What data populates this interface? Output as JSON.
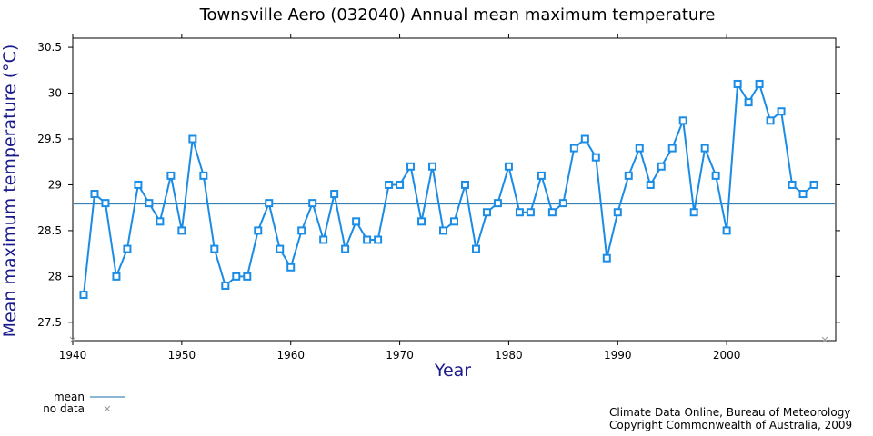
{
  "chart_data": {
    "type": "line",
    "title": "Townsville Aero (032040) Annual mean maximum temperature",
    "xlabel": "Year",
    "ylabel": "Mean maximum temperature (°C)",
    "xlim": [
      1940,
      2010
    ],
    "ylim": [
      27.3,
      30.6
    ],
    "xticks": [
      1940,
      1950,
      1960,
      1970,
      1980,
      1990,
      2000
    ],
    "yticks": [
      27.5,
      28,
      28.5,
      29,
      29.5,
      30,
      30.5
    ],
    "xtick_labels": [
      "1940",
      "1950",
      "1960",
      "1970",
      "1980",
      "1990",
      "2000"
    ],
    "ytick_labels": [
      "27.5",
      "28",
      "28.5",
      "29",
      "29.5",
      "30",
      "30.5"
    ],
    "grid": false,
    "mean": 28.79,
    "series": [
      {
        "x": [
          1941,
          1942,
          1943,
          1944,
          1945,
          1946,
          1947,
          1948,
          1949,
          1950,
          1951,
          1952,
          1953,
          1954,
          1955,
          1956,
          1957,
          1958,
          1959,
          1960,
          1961,
          1962,
          1963,
          1964,
          1965,
          1966,
          1967,
          1968,
          1969,
          1970,
          1971,
          1972,
          1973,
          1974,
          1975,
          1976,
          1977,
          1978,
          1979,
          1980,
          1981,
          1982,
          1983,
          1984,
          1985,
          1986,
          1987,
          1988,
          1989,
          1990,
          1991,
          1992,
          1993,
          1994,
          1995,
          1996,
          1997,
          1998,
          1999,
          2000,
          2001,
          2002,
          2003,
          2004,
          2005,
          2006,
          2007,
          2008
        ],
        "y": [
          27.8,
          28.9,
          28.8,
          28.0,
          28.3,
          29.0,
          28.8,
          28.6,
          29.1,
          28.5,
          29.5,
          29.1,
          28.3,
          27.9,
          28.0,
          28.0,
          28.5,
          28.8,
          28.3,
          28.1,
          28.5,
          28.8,
          28.4,
          28.9,
          28.3,
          28.6,
          28.4,
          28.4,
          29.0,
          29.0,
          29.2,
          28.6,
          29.2,
          28.5,
          28.6,
          29.0,
          28.3,
          28.7,
          28.8,
          29.2,
          28.7,
          28.7,
          29.1,
          28.7,
          28.8,
          29.4,
          29.5,
          29.3,
          28.2,
          28.7,
          29.1,
          29.4,
          29.0,
          29.2,
          29.4,
          29.7,
          28.7,
          29.4,
          29.1,
          28.5,
          30.1,
          29.9,
          30.1,
          29.7,
          29.8,
          29.0,
          28.9,
          29.0
        ]
      }
    ],
    "no_data_x": [
      1940,
      2009
    ],
    "colors": {
      "series": "#1a8ce6",
      "mean": "#1a6fa8",
      "axis_label": "#1a1a8c",
      "no_data": "#999999"
    }
  },
  "legend": {
    "mean_label": "mean",
    "nodata_label": "no data"
  },
  "credit": {
    "line1": "Climate Data Online, Bureau of Meteorology",
    "line2": "Copyright Commonwealth of Australia, 2009"
  }
}
